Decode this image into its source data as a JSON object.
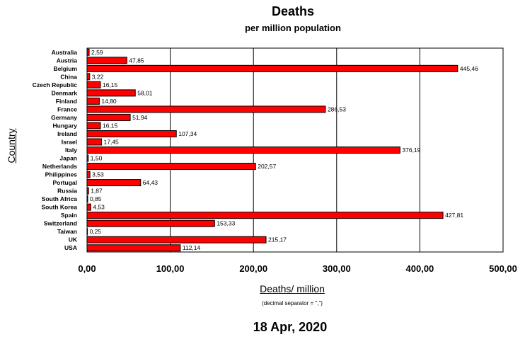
{
  "chart_data": {
    "type": "bar",
    "orientation": "horizontal",
    "title": "Deaths",
    "subtitle": "per million population",
    "xlabel": "Deaths/ million",
    "ylabel": "Country",
    "note": "(decimal separator = \",\")",
    "date": "18 Apr, 2020",
    "xlim": [
      0,
      500
    ],
    "xticks": [
      0,
      100,
      200,
      300,
      400,
      500
    ],
    "xtick_labels": [
      "0,00",
      "100,00",
      "200,00",
      "300,00",
      "400,00",
      "500,00"
    ],
    "grid": "vertical",
    "bar_color": "#ff0000",
    "categories": [
      "Australia",
      "Austria",
      "Belgium",
      "China",
      "Czech Republic",
      "Denmark",
      "Finland",
      "France",
      "Germany",
      "Hungary",
      "Ireland",
      "Israel",
      "Italy",
      "Japan",
      "Netherlands",
      "Philippines",
      "Portugal",
      "Russia",
      "South Africa",
      "South Korea",
      "Spain",
      "Switzerland",
      "Taiwan",
      "UK",
      "USA"
    ],
    "values": [
      2.59,
      47.85,
      445.46,
      3.22,
      16.15,
      58.01,
      14.8,
      286.53,
      51.94,
      16.15,
      107.34,
      17.45,
      376.19,
      1.5,
      202.57,
      3.53,
      64.43,
      1.87,
      0.85,
      4.53,
      427.81,
      153.33,
      0.25,
      215.17,
      112.14
    ],
    "value_labels": [
      "2,59",
      "47,85",
      "445,46",
      "3,22",
      "16,15",
      "58,01",
      "14,80",
      "286,53",
      "51,94",
      "16,15",
      "107,34",
      "17,45",
      "376,19",
      "1,50",
      "202,57",
      "3,53",
      "64,43",
      "1,87",
      "0,85",
      "4,53",
      "427,81",
      "153,33",
      "0,25",
      "215,17",
      "112,14"
    ]
  }
}
